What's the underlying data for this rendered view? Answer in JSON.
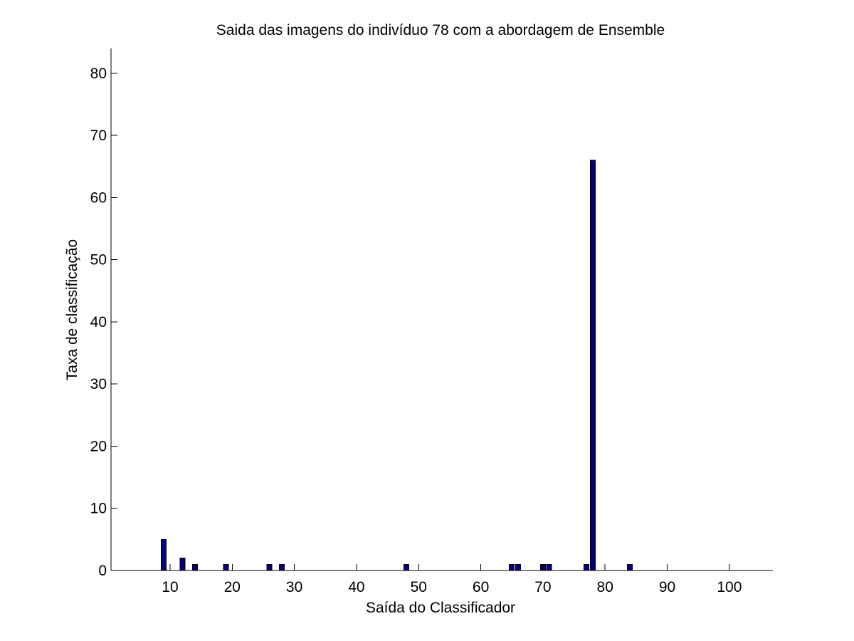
{
  "chart_data": {
    "type": "bar",
    "title": "Saida das imagens do indivíduo 78 com a abordagem de Ensemble",
    "xlabel": "Saída do Classificador",
    "ylabel": "Taxa de classificação",
    "x": [
      9,
      12,
      14,
      19,
      26,
      28,
      48,
      65,
      66,
      70,
      71,
      77,
      78,
      84
    ],
    "values": [
      5,
      2,
      1,
      1,
      1,
      1,
      1,
      1,
      1,
      1,
      1,
      1,
      66,
      1
    ],
    "xlim": [
      0.5,
      107
    ],
    "ylim": [
      0,
      84
    ],
    "xticks": [
      10,
      20,
      30,
      40,
      50,
      60,
      70,
      80,
      90,
      100
    ],
    "yticks": [
      0,
      10,
      20,
      30,
      40,
      50,
      60,
      70,
      80
    ],
    "bar_color": "#00007f",
    "bar_edge_color": "#000000",
    "grid": false,
    "legend": "none"
  }
}
